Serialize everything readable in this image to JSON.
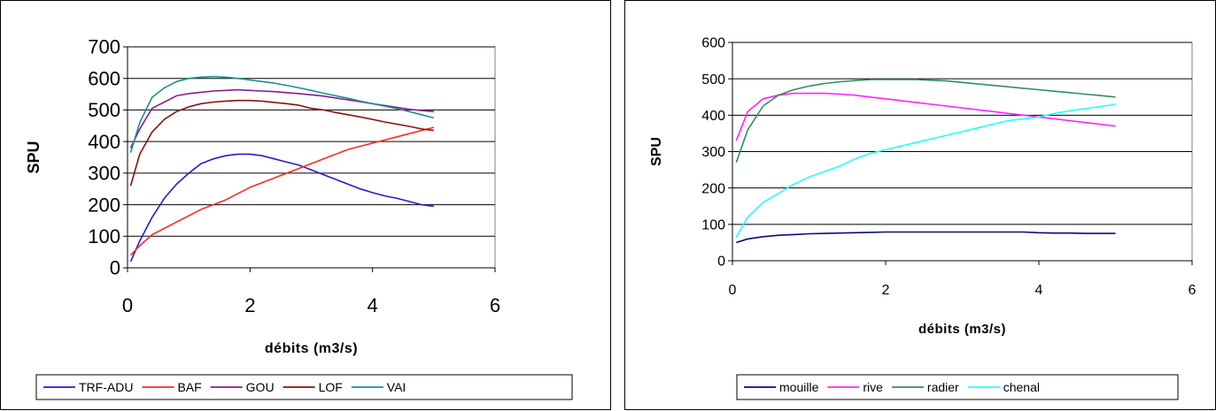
{
  "chart_data": [
    {
      "type": "line",
      "xlabel": "débits (m3/s)",
      "ylabel": "SPU",
      "xlim": [
        0,
        6
      ],
      "ylim": [
        0,
        700
      ],
      "xticks": [
        "0",
        "2",
        "4",
        "6"
      ],
      "yticks": [
        "0",
        "100",
        "200",
        "300",
        "400",
        "500",
        "600",
        "700"
      ],
      "grid": "horizontal",
      "legend": "bottom",
      "plot_background": "#ffffff",
      "x": [
        0.05,
        0.2,
        0.4,
        0.6,
        0.8,
        1.0,
        1.2,
        1.4,
        1.6,
        1.8,
        2.0,
        2.2,
        2.4,
        2.6,
        2.8,
        3.0,
        3.2,
        3.4,
        3.6,
        3.8,
        4.0,
        4.2,
        4.4,
        4.6,
        4.8,
        5.0
      ],
      "series": [
        {
          "name": "TRF-ADU",
          "color": "#1f1fd1",
          "values": [
            20,
            85,
            160,
            220,
            265,
            300,
            330,
            345,
            355,
            360,
            360,
            355,
            345,
            335,
            325,
            310,
            295,
            280,
            265,
            250,
            238,
            228,
            220,
            210,
            200,
            195
          ]
        },
        {
          "name": "BAF",
          "color": "#ff2a1a",
          "values": [
            40,
            70,
            105,
            125,
            145,
            165,
            185,
            200,
            215,
            235,
            255,
            270,
            285,
            300,
            315,
            330,
            345,
            360,
            375,
            385,
            395,
            405,
            415,
            425,
            435,
            445
          ]
        },
        {
          "name": "GOU",
          "color": "#8b1a8b",
          "values": [
            380,
            440,
            505,
            525,
            545,
            552,
            556,
            560,
            562,
            564,
            562,
            560,
            558,
            555,
            552,
            548,
            544,
            538,
            532,
            526,
            520,
            514,
            508,
            502,
            498,
            495
          ]
        },
        {
          "name": "LOF",
          "color": "#8b1010",
          "values": [
            260,
            360,
            430,
            470,
            495,
            510,
            520,
            525,
            528,
            530,
            530,
            528,
            524,
            520,
            515,
            505,
            500,
            492,
            485,
            478,
            470,
            462,
            455,
            448,
            440,
            435
          ]
        },
        {
          "name": "VAI",
          "color": "#1a8f8f",
          "values": [
            365,
            460,
            540,
            570,
            590,
            600,
            604,
            606,
            604,
            600,
            595,
            590,
            585,
            578,
            570,
            562,
            553,
            545,
            537,
            528,
            520,
            512,
            504,
            495,
            485,
            475
          ]
        }
      ]
    },
    {
      "type": "line",
      "xlabel": "débits (m3/s)",
      "ylabel": "SPU",
      "xlim": [
        0,
        6
      ],
      "ylim": [
        0,
        600
      ],
      "xticks": [
        "0",
        "2",
        "4",
        "6"
      ],
      "yticks": [
        "0",
        "100",
        "200",
        "300",
        "400",
        "500",
        "600"
      ],
      "grid": "horizontal",
      "legend": "bottom",
      "plot_background": "#ffffff",
      "x": [
        0.05,
        0.2,
        0.4,
        0.6,
        0.8,
        1.0,
        1.2,
        1.4,
        1.6,
        1.8,
        2.0,
        2.2,
        2.4,
        2.6,
        2.8,
        3.0,
        3.2,
        3.4,
        3.6,
        3.8,
        4.0,
        4.2,
        4.4,
        4.6,
        4.8,
        5.0
      ],
      "series": [
        {
          "name": "mouille",
          "color": "#0a0a7a",
          "values": [
            50,
            60,
            66,
            70,
            72,
            74,
            75,
            76,
            77,
            78,
            79,
            79,
            79,
            79,
            79,
            79,
            79,
            79,
            79,
            79,
            77,
            76,
            76,
            75,
            75,
            75
          ]
        },
        {
          "name": "rive",
          "color": "#ff22ff",
          "values": [
            330,
            410,
            445,
            455,
            460,
            460,
            460,
            458,
            455,
            450,
            445,
            440,
            435,
            430,
            425,
            420,
            415,
            410,
            405,
            400,
            395,
            390,
            385,
            380,
            375,
            370
          ]
        },
        {
          "name": "radier",
          "color": "#2f8f5f",
          "values": [
            270,
            360,
            425,
            455,
            470,
            480,
            487,
            492,
            495,
            498,
            498,
            498,
            498,
            496,
            494,
            490,
            486,
            482,
            478,
            474,
            470,
            466,
            462,
            458,
            454,
            450
          ]
        },
        {
          "name": "chenal",
          "color": "#22ffff",
          "values": [
            65,
            120,
            160,
            185,
            210,
            230,
            245,
            260,
            280,
            295,
            305,
            315,
            325,
            335,
            345,
            355,
            365,
            375,
            385,
            390,
            395,
            405,
            412,
            418,
            424,
            430
          ]
        }
      ]
    }
  ]
}
